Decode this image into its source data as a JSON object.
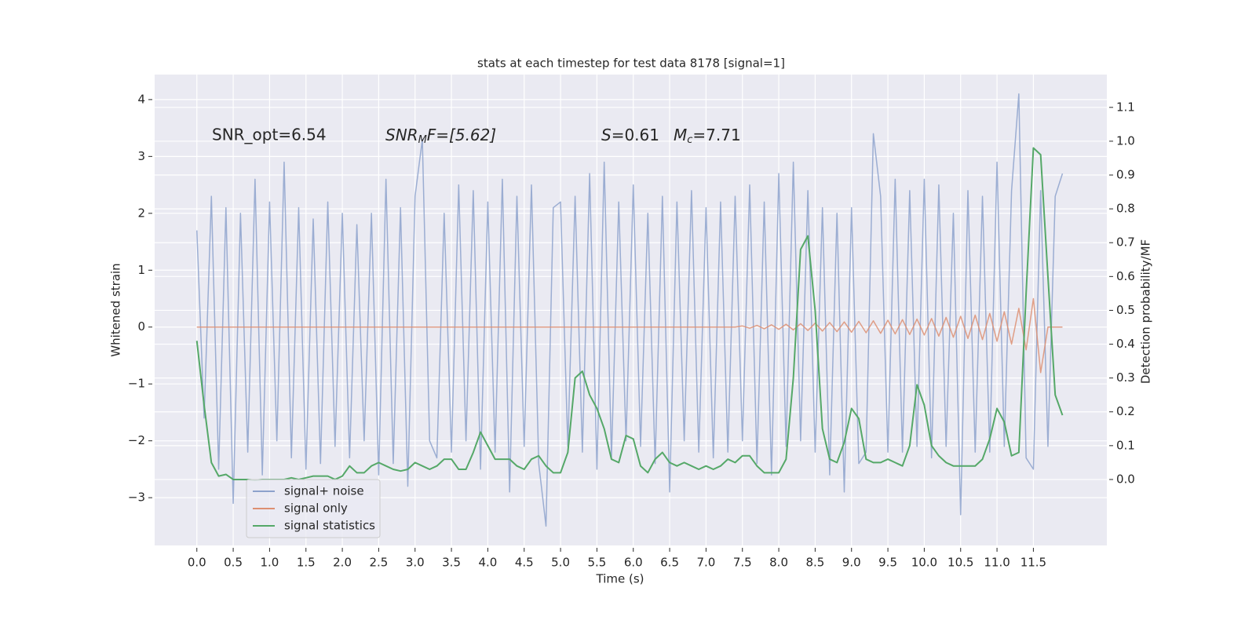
{
  "chart_data": {
    "type": "line",
    "title": "stats at each timestep for test data 8178 [signal=1]",
    "xlabel": "Time (s)",
    "ylabel": "Whitened strain",
    "y2label": "Detection probability/MF",
    "annotations": [
      [
        "SNR_opt=6.54"
      ],
      [
        "SNR",
        "M",
        "F=[5.62]"
      ],
      [
        "S",
        "=0.61"
      ],
      [
        "M",
        "c",
        "=7.71"
      ]
    ],
    "grid": true,
    "legend": "lower left",
    "xlim": [
      -0.58,
      12.51
    ],
    "ylim": [
      -3.84,
      4.44
    ],
    "y2lim": [
      -0.195,
      1.197
    ],
    "xticks": [
      {
        "value": 0,
        "label": "0.0"
      },
      {
        "value": 0.5,
        "label": "0.5"
      },
      {
        "value": 1,
        "label": "1.0"
      },
      {
        "value": 1.5,
        "label": "1.5"
      },
      {
        "value": 2,
        "label": "2.0"
      },
      {
        "value": 2.5,
        "label": "2.5"
      },
      {
        "value": 3,
        "label": "3.0"
      },
      {
        "value": 3.5,
        "label": "3.5"
      },
      {
        "value": 4,
        "label": "4.0"
      },
      {
        "value": 4.5,
        "label": "4.5"
      },
      {
        "value": 5,
        "label": "5.0"
      },
      {
        "value": 5.5,
        "label": "5.5"
      },
      {
        "value": 6,
        "label": "6.0"
      },
      {
        "value": 6.5,
        "label": "6.5"
      },
      {
        "value": 7,
        "label": "7.0"
      },
      {
        "value": 7.5,
        "label": "7.5"
      },
      {
        "value": 8,
        "label": "8.0"
      },
      {
        "value": 8.5,
        "label": "8.5"
      },
      {
        "value": 9,
        "label": "9.0"
      },
      {
        "value": 9.5,
        "label": "9.5"
      },
      {
        "value": 10,
        "label": "10.0"
      },
      {
        "value": 10.5,
        "label": "10.5"
      },
      {
        "value": 11,
        "label": "11.0"
      },
      {
        "value": 11.5,
        "label": "11.5"
      }
    ],
    "yticks": [
      {
        "value": -3,
        "label": "−3"
      },
      {
        "value": -2,
        "label": "−2"
      },
      {
        "value": -1,
        "label": "−1"
      },
      0,
      1,
      2,
      3,
      4
    ],
    "y2ticks": [
      {
        "value": 0,
        "label": "0.0"
      },
      {
        "value": 0.1,
        "label": "0.1"
      },
      {
        "value": 0.2,
        "label": "0.2"
      },
      {
        "value": 0.3,
        "label": "0.3"
      },
      {
        "value": 0.4,
        "label": "0.4"
      },
      {
        "value": 0.5,
        "label": "0.5"
      },
      {
        "value": 0.6,
        "label": "0.6"
      },
      {
        "value": 0.7,
        "label": "0.7"
      },
      {
        "value": 0.8,
        "label": "0.8"
      },
      {
        "value": 0.9,
        "label": "0.9"
      },
      {
        "value": 1,
        "label": "1.0"
      },
      {
        "value": 1.1,
        "label": "1.1"
      }
    ],
    "x": [
      0,
      0.1,
      0.2,
      0.3,
      0.4,
      0.5,
      0.6,
      0.7,
      0.8,
      0.9,
      1,
      1.1,
      1.2,
      1.3,
      1.4,
      1.5,
      1.6,
      1.7,
      1.8,
      1.9,
      2,
      2.1,
      2.2,
      2.3,
      2.4,
      2.5,
      2.6,
      2.7,
      2.8,
      2.9,
      3,
      3.1,
      3.2,
      3.3,
      3.4,
      3.5,
      3.6,
      3.7,
      3.8,
      3.9,
      4,
      4.1,
      4.2,
      4.3,
      4.4,
      4.5,
      4.6,
      4.7,
      4.8,
      4.9,
      5,
      5.1,
      5.2,
      5.3,
      5.4,
      5.5,
      5.6,
      5.7,
      5.8,
      5.9,
      6,
      6.1,
      6.2,
      6.3,
      6.4,
      6.5,
      6.6,
      6.7,
      6.8,
      6.9,
      7,
      7.1,
      7.2,
      7.3,
      7.4,
      7.5,
      7.6,
      7.7,
      7.8,
      7.9,
      8,
      8.1,
      8.2,
      8.3,
      8.4,
      8.5,
      8.6,
      8.7,
      8.8,
      8.9,
      9,
      9.1,
      9.2,
      9.3,
      9.4,
      9.5,
      9.6,
      9.7,
      9.8,
      9.9,
      10,
      10.1,
      10.2,
      10.3,
      10.4,
      10.5,
      10.6,
      10.7,
      10.8,
      10.9,
      11,
      11.1,
      11.2,
      11.3,
      11.4,
      11.5,
      11.6,
      11.7,
      11.8,
      11.9
    ],
    "series": [
      {
        "name": "signal+ noise",
        "color": "#8da2cc",
        "values": [
          1.7,
          -1.6,
          2.3,
          -2.5,
          2.1,
          -3.1,
          2.0,
          -2.2,
          2.6,
          -2.6,
          2.2,
          -2.0,
          2.9,
          -2.3,
          2.1,
          -2.5,
          1.9,
          -2.4,
          2.2,
          -2.1,
          2.0,
          -2.3,
          1.8,
          -2.0,
          2.0,
          -2.6,
          2.6,
          -2.4,
          2.1,
          -2.8,
          2.3,
          3.3,
          -2.0,
          -2.3,
          2.0,
          -2.2,
          2.5,
          -2.0,
          2.4,
          -2.5,
          2.2,
          -2.2,
          2.6,
          -2.9,
          2.3,
          -2.1,
          2.5,
          -2.4,
          -3.5,
          2.1,
          2.2,
          -2.1,
          2.3,
          -2.2,
          2.7,
          -2.5,
          2.9,
          -2.3,
          2.2,
          -2.0,
          2.5,
          -2.1,
          2.0,
          -2.4,
          2.3,
          -2.9,
          2.2,
          -2.0,
          2.4,
          -2.2,
          2.1,
          -2.3,
          2.2,
          -2.2,
          2.3,
          -2.0,
          2.5,
          -2.4,
          2.2,
          -2.6,
          2.7,
          -2.1,
          2.9,
          -2.0,
          2.4,
          -2.2,
          2.1,
          -2.6,
          2.0,
          -2.9,
          2.1,
          -2.4,
          -2.2,
          3.4,
          2.3,
          -2.2,
          2.6,
          -2.2,
          2.4,
          -2.1,
          2.6,
          -2.3,
          2.5,
          -2.1,
          2.0,
          -3.3,
          2.4,
          -2.2,
          2.3,
          -2.2,
          2.9,
          -2.1,
          2.4,
          4.1,
          -2.3,
          -2.5,
          2.4,
          -2.1,
          2.3,
          2.7
        ]
      },
      {
        "name": "signal only",
        "color": "#dd8f72",
        "values": [
          0,
          0,
          0,
          0,
          0,
          0,
          0,
          0,
          0,
          0,
          0,
          0,
          0,
          0,
          0,
          0,
          0,
          0,
          0,
          0,
          0,
          0,
          0,
          0,
          0,
          0,
          0,
          0,
          0,
          0,
          0,
          0,
          0,
          0,
          0,
          0,
          0,
          0,
          0,
          0,
          0,
          0,
          0,
          0,
          0,
          0,
          0,
          0,
          0,
          0,
          0,
          0,
          0,
          0,
          0,
          0,
          0,
          0,
          0,
          0,
          0,
          0,
          0,
          0,
          0,
          0,
          0,
          0,
          0,
          0,
          0,
          0,
          0,
          0,
          0,
          0.02,
          -0.02,
          0.03,
          -0.03,
          0.04,
          -0.04,
          0.05,
          -0.05,
          0.06,
          -0.06,
          0.07,
          -0.07,
          0.08,
          -0.08,
          0.09,
          -0.09,
          0.1,
          -0.1,
          0.11,
          -0.11,
          0.12,
          -0.12,
          0.13,
          -0.13,
          0.14,
          -0.14,
          0.15,
          -0.16,
          0.17,
          -0.18,
          0.19,
          -0.2,
          0.21,
          -0.22,
          0.24,
          -0.25,
          0.27,
          -0.3,
          0.33,
          -0.4,
          0.5,
          -0.8,
          0,
          0,
          0
        ]
      },
      {
        "name": "signal statistics",
        "color": "#55a868",
        "axis": "y2",
        "values": [
          0.41,
          0.22,
          0.05,
          0.01,
          0.015,
          0,
          0,
          0,
          -0.002,
          0,
          0,
          0,
          0,
          0.005,
          0,
          0.005,
          0.01,
          0.01,
          0.01,
          0,
          0.01,
          0.04,
          0.02,
          0.02,
          0.04,
          0.05,
          0.04,
          0.03,
          0.025,
          0.03,
          0.05,
          0.04,
          0.03,
          0.04,
          0.06,
          0.06,
          0.03,
          0.03,
          0.08,
          0.14,
          0.1,
          0.06,
          0.06,
          0.06,
          0.04,
          0.03,
          0.06,
          0.07,
          0.04,
          0.02,
          0.02,
          0.08,
          0.3,
          0.32,
          0.25,
          0.21,
          0.15,
          0.06,
          0.05,
          0.13,
          0.12,
          0.04,
          0.02,
          0.06,
          0.08,
          0.05,
          0.04,
          0.05,
          0.04,
          0.03,
          0.04,
          0.03,
          0.04,
          0.06,
          0.05,
          0.07,
          0.07,
          0.04,
          0.02,
          0.02,
          0.02,
          0.06,
          0.3,
          0.68,
          0.72,
          0.5,
          0.15,
          0.06,
          0.05,
          0.11,
          0.21,
          0.18,
          0.06,
          0.05,
          0.05,
          0.06,
          0.05,
          0.04,
          0.1,
          0.28,
          0.22,
          0.1,
          0.07,
          0.05,
          0.04,
          0.04,
          0.04,
          0.04,
          0.06,
          0.12,
          0.21,
          0.17,
          0.07,
          0.08,
          0.55,
          0.98,
          0.96,
          0.6,
          0.25,
          0.19
        ]
      }
    ]
  }
}
